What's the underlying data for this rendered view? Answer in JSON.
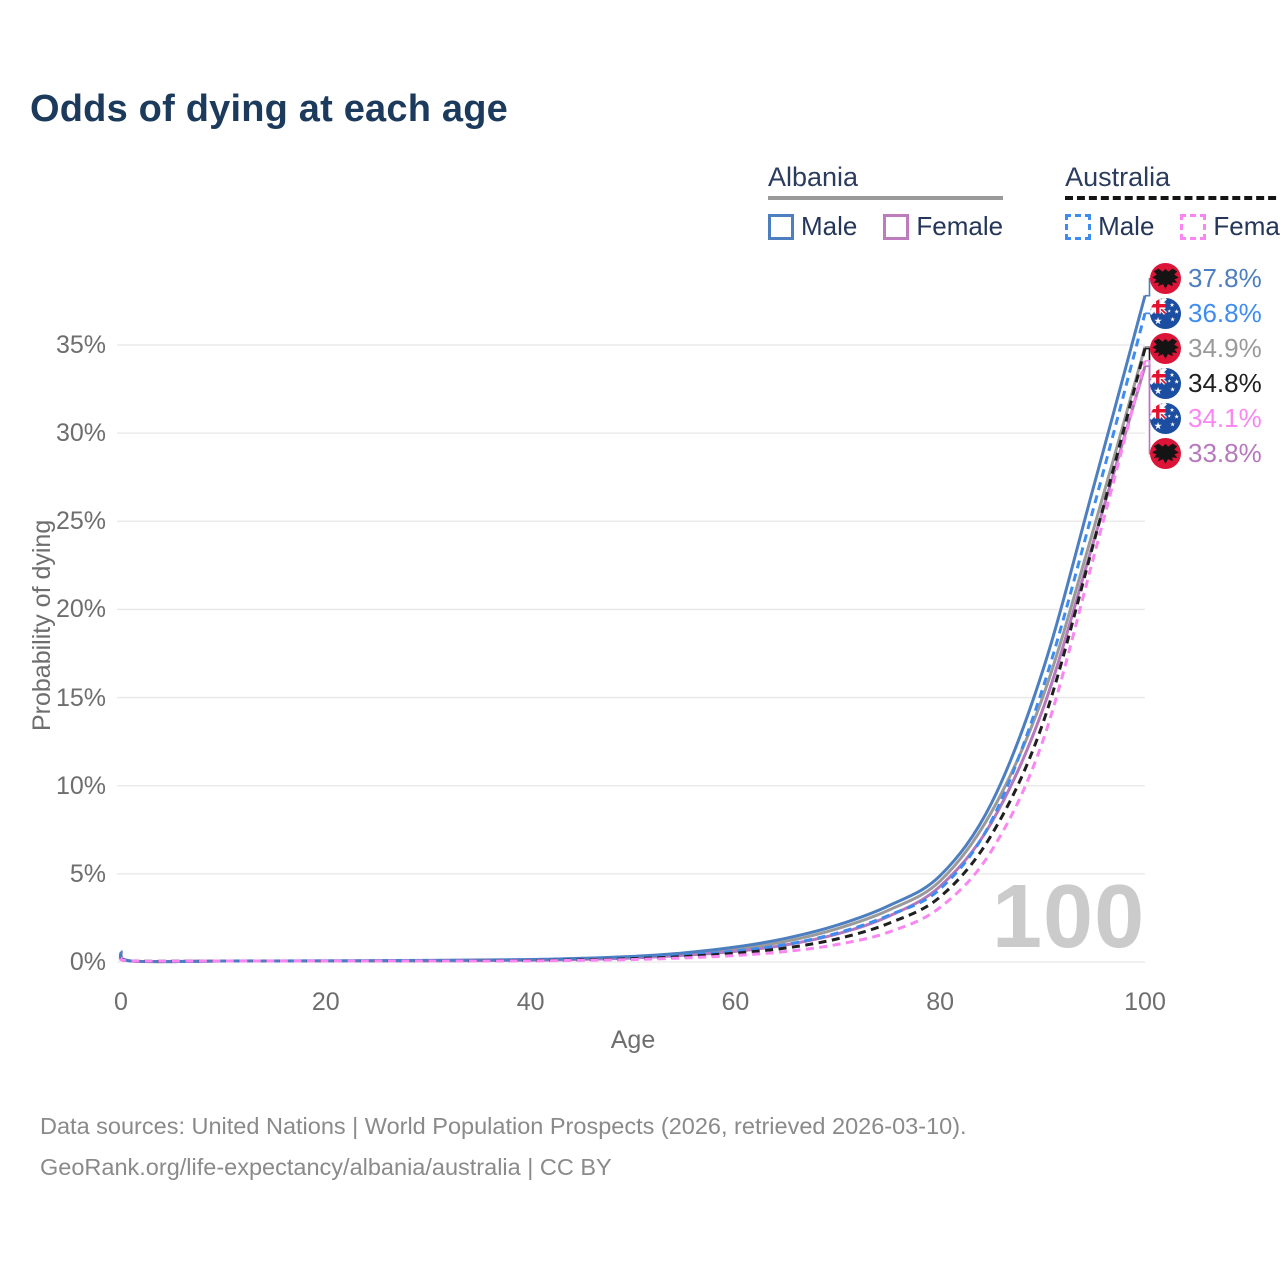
{
  "title": "Odds of dying at each age",
  "watermark": "100",
  "colors": {
    "title": "#1c3a5c",
    "albania_male": "#4d7fc0",
    "australia_male": "#3f8cf0",
    "albania_both": "#9a9a9a",
    "australia_both": "#1f1f1f",
    "australia_female": "#f986f1",
    "albania_female": "#b678bd",
    "albania_flag_red": "#dc1437",
    "australia_flag_blue": "#1b4da0",
    "flag_cross_red": "#e8112d",
    "gridline": "#e7e7e7",
    "axis_text": "#6e6e6e",
    "watermark_gray": "#cbcbcb"
  },
  "legend": {
    "groups": [
      {
        "country": "Albania",
        "underline_style": "solid",
        "underline_color": "#9a9a9a",
        "items": [
          {
            "label": "Male",
            "color": "#4d7fc0",
            "dash": false
          },
          {
            "label": "Female",
            "color": "#bd7dbd",
            "dash": false
          }
        ]
      },
      {
        "country": "Australia",
        "underline_style": "dashed",
        "underline_color": "#141414",
        "items": [
          {
            "label": "Male",
            "color": "#3f8cf0",
            "dash": true
          },
          {
            "label": "Female",
            "color": "#fb85f2",
            "dash": true
          }
        ]
      }
    ]
  },
  "chart_data": {
    "type": "line",
    "title": "Odds of dying at each age",
    "xlabel": "Age",
    "ylabel": "Probability of dying",
    "xlim": [
      0,
      100
    ],
    "ylim_pct": [
      0,
      35
    ],
    "grid": "horizontal",
    "x_ticks": [
      0,
      20,
      40,
      60,
      80,
      100
    ],
    "y_ticks": [
      {
        "value": 0,
        "label": "0%"
      },
      {
        "value": 5,
        "label": "5%"
      },
      {
        "value": 10,
        "label": "10%"
      },
      {
        "value": 15,
        "label": "15%"
      },
      {
        "value": 20,
        "label": "20%"
      },
      {
        "value": 25,
        "label": "25%"
      },
      {
        "value": 30,
        "label": "30%"
      },
      {
        "value": 35,
        "label": "35%"
      }
    ],
    "ages": [
      0,
      1,
      10,
      20,
      30,
      40,
      45,
      50,
      55,
      60,
      65,
      70,
      75,
      80,
      85,
      90,
      95,
      100
    ],
    "series": [
      {
        "id": "albania-male",
        "flag": "albania",
        "style": "solid",
        "color": "#4d7fc0",
        "end_value": 37.8,
        "end_label": "37.8%",
        "values": [
          0.62,
          0.06,
          0.02,
          0.07,
          0.09,
          0.14,
          0.21,
          0.32,
          0.52,
          0.85,
          1.35,
          2.1,
          3.2,
          4.9,
          9.0,
          16.5,
          27.0,
          37.8
        ]
      },
      {
        "id": "australia-male",
        "flag": "australia",
        "style": "dashed",
        "color": "#3f8cf0",
        "end_value": 36.8,
        "end_label": "36.8%",
        "values": [
          0.35,
          0.03,
          0.01,
          0.05,
          0.07,
          0.1,
          0.15,
          0.23,
          0.38,
          0.62,
          1.0,
          1.65,
          2.65,
          4.15,
          8.0,
          15.5,
          25.8,
          36.8
        ]
      },
      {
        "id": "albania-both",
        "flag": "albania",
        "style": "solid",
        "color": "#9a9a9a",
        "end_value": 34.9,
        "end_label": "34.9%",
        "values": [
          0.58,
          0.05,
          0.02,
          0.06,
          0.08,
          0.12,
          0.18,
          0.28,
          0.46,
          0.73,
          1.18,
          1.9,
          2.95,
          4.6,
          8.5,
          15.0,
          24.6,
          34.9
        ]
      },
      {
        "id": "australia-both",
        "flag": "australia",
        "style": "dashed",
        "color": "#1f1f1f",
        "end_value": 34.8,
        "end_label": "34.8%",
        "values": [
          0.3,
          0.025,
          0.01,
          0.04,
          0.06,
          0.085,
          0.125,
          0.19,
          0.31,
          0.5,
          0.8,
          1.32,
          2.2,
          3.7,
          7.2,
          13.5,
          23.8,
          34.8
        ]
      },
      {
        "id": "australia-female",
        "flag": "australia",
        "style": "dashed",
        "color": "#f986f1",
        "end_value": 34.1,
        "end_label": "34.1%",
        "values": [
          0.27,
          0.02,
          0.01,
          0.025,
          0.04,
          0.065,
          0.095,
          0.14,
          0.23,
          0.37,
          0.6,
          1.0,
          1.7,
          3.1,
          6.3,
          12.5,
          23.0,
          34.1
        ]
      },
      {
        "id": "albania-female",
        "flag": "albania",
        "style": "solid",
        "color": "#b678bd",
        "end_value": 33.8,
        "end_label": "33.8%",
        "values": [
          0.52,
          0.04,
          0.015,
          0.04,
          0.06,
          0.1,
          0.15,
          0.23,
          0.38,
          0.6,
          0.98,
          1.6,
          2.6,
          4.3,
          7.9,
          14.3,
          23.9,
          33.8
        ]
      }
    ],
    "legend_position": "top-right",
    "end_label_counter": "100"
  },
  "footer": {
    "line1": "Data sources: United Nations | World Population Prospects (2026, retrieved 2026-03-10).",
    "line2": "GeoRank.org/life-expectancy/albania/australia | CC BY"
  }
}
